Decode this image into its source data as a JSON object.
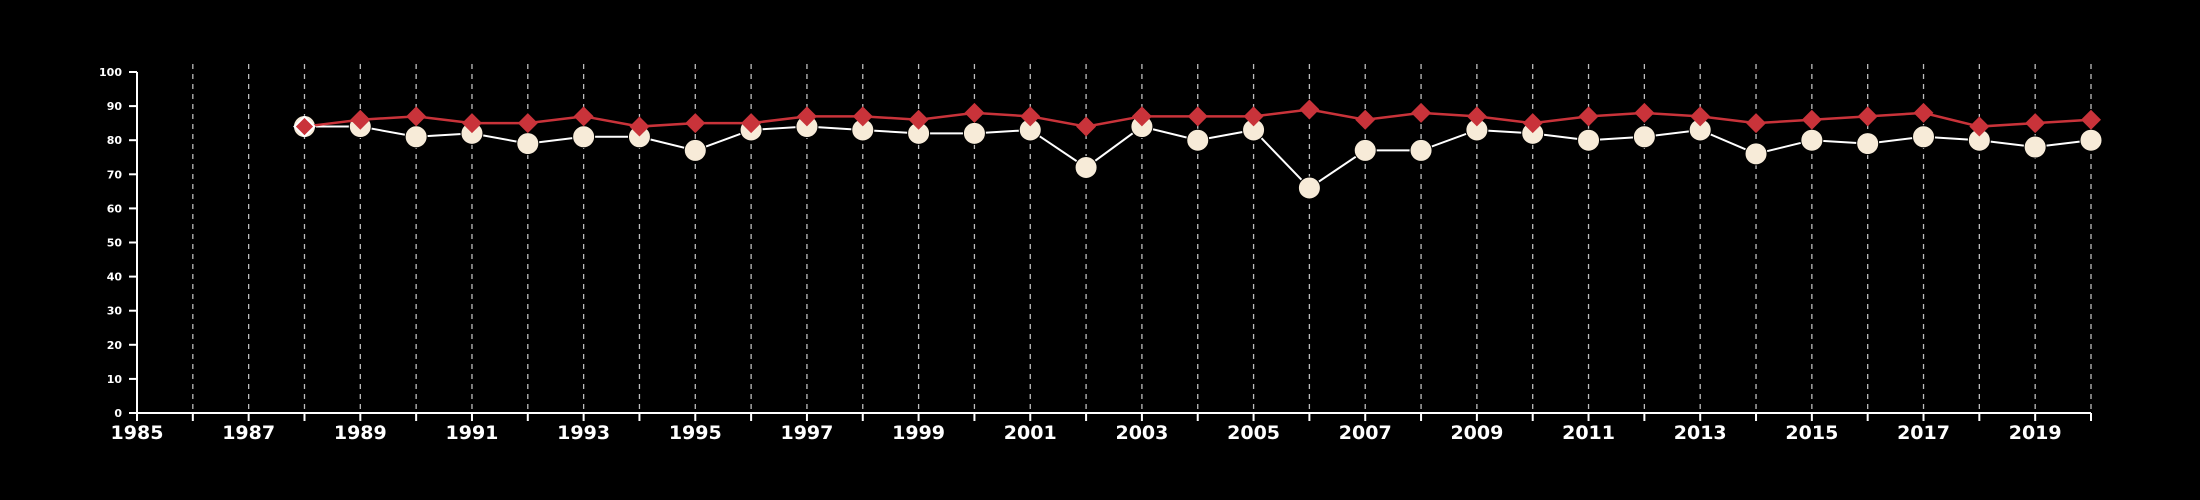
{
  "chart_data": {
    "type": "line",
    "title": "",
    "xlabel": "",
    "ylabel": "",
    "xlim": [
      1985,
      2020
    ],
    "ylim": [
      0,
      100
    ],
    "y_ticks": [
      "0",
      "10",
      "20",
      "30",
      "40",
      "50",
      "60",
      "70",
      "80",
      "90",
      "100"
    ],
    "x_ticks": [
      "1985",
      "1987",
      "1989",
      "1991",
      "1993",
      "1995",
      "1997",
      "1999",
      "2001",
      "2003",
      "2005",
      "2007",
      "2009",
      "2011",
      "2013",
      "2015",
      "2017",
      "2019"
    ],
    "grid": "vertical dashed lines at every year",
    "legend": "none",
    "colors": {
      "background": "#000000",
      "axis": "#ffffff",
      "grid": "#bdbdbd",
      "series_red": "#c9333a",
      "series_light": "#f7ebd8",
      "series_light_line": "#ffffff"
    },
    "x": [
      1988,
      1989,
      1990,
      1991,
      1992,
      1993,
      1994,
      1995,
      1996,
      1997,
      1998,
      1999,
      2000,
      2001,
      2002,
      2003,
      2004,
      2005,
      2006,
      2007,
      2008,
      2009,
      2010,
      2011,
      2012,
      2013,
      2014,
      2015,
      2016,
      2017,
      2018,
      2019,
      2020
    ],
    "series": [
      {
        "marker": "diamond",
        "color": "#c9333a",
        "values": [
          84,
          86,
          87,
          85,
          85,
          87,
          84,
          85,
          85,
          87,
          87,
          86,
          88,
          87,
          84,
          87,
          87,
          87,
          89,
          86,
          88,
          87,
          85,
          87,
          88,
          87,
          85,
          86,
          87,
          88,
          84,
          85,
          86
        ]
      },
      {
        "marker": "circle",
        "color": "#f7ebd8",
        "values": [
          84,
          84,
          81,
          82,
          79,
          81,
          81,
          77,
          83,
          84,
          83,
          82,
          82,
          83,
          72,
          84,
          80,
          83,
          66,
          77,
          77,
          83,
          82,
          80,
          81,
          83,
          76,
          80,
          79,
          81,
          80,
          78,
          80
        ]
      }
    ]
  }
}
